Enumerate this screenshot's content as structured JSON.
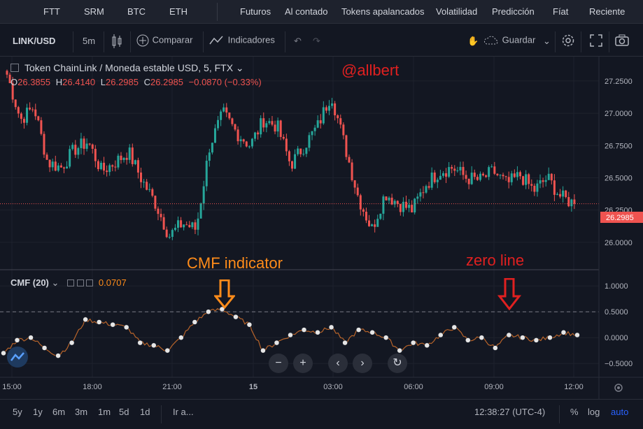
{
  "topnav": {
    "items": [
      "FTT",
      "SRM",
      "BTC",
      "ETH",
      "Futuros",
      "Al contado",
      "Tokens apalancados",
      "Volatilidad",
      "Predicción",
      "Fíat",
      "Reciente"
    ]
  },
  "toolbar": {
    "symbol": "LINK/USD",
    "interval": "5m",
    "compare": "Comparar",
    "indicators": "Indicadores",
    "save": "Guardar"
  },
  "legend": {
    "title": "Token ChainLink / Moneda estable USD, 5, FTX",
    "o_label": "O",
    "o_value": "26.3855",
    "h_label": "H",
    "h_value": "26.4140",
    "l_label": "L",
    "l_value": "26.2985",
    "c_label": "C",
    "c_value": "26.2985",
    "change": "−0.0870 (−0.33%)"
  },
  "watermark": "@allbert",
  "cmf": {
    "label": "CMF (20)",
    "value": "0.0707"
  },
  "annotations": {
    "cmf_indicator": "CMF indicator",
    "zero_line": "zero line"
  },
  "price_tag": "26.2985",
  "bottombar": {
    "ranges": [
      "5y",
      "1y",
      "6m",
      "3m",
      "1m",
      "5d",
      "1d"
    ],
    "goto": "Ir a...",
    "time": "12:38:27 (UTC-4)",
    "percent": "%",
    "log": "log",
    "auto": "auto"
  },
  "colors": {
    "up": "#26a69a",
    "down": "#ef5350",
    "cmf_line": "#b8642a",
    "annotation_orange": "#ff8c1a",
    "annotation_red": "#e02020",
    "accent": "#2962ff"
  },
  "chart_data": [
    {
      "type": "candlestick",
      "title": "Token ChainLink / Moneda estable USD, 5, FTX",
      "x_ticks": [
        "15:00",
        "18:00",
        "21:00",
        "15",
        "03:00",
        "06:00",
        "09:00",
        "12:00"
      ],
      "y_ticks": [
        26.0,
        26.25,
        26.5,
        26.75,
        27.0,
        27.25,
        27.5
      ],
      "ylim": [
        25.88,
        27.52
      ],
      "last_price": 26.2985,
      "close_path": {
        "x": [
          "15:00",
          "15:30",
          "16:00",
          "16:30",
          "17:00",
          "17:30",
          "18:00",
          "18:30",
          "19:00",
          "19:30",
          "20:00",
          "20:30",
          "21:00",
          "21:30",
          "22:00",
          "22:30",
          "23:00",
          "23:30",
          "00:00",
          "00:30",
          "01:00",
          "01:30",
          "02:00",
          "02:30",
          "03:00",
          "03:30",
          "04:00",
          "04:30",
          "05:00",
          "05:30",
          "06:00",
          "06:30",
          "07:00",
          "07:30",
          "08:00",
          "08:30",
          "09:00",
          "09:30",
          "10:00",
          "10:30",
          "11:00",
          "11:30",
          "12:00"
        ],
        "values": [
          27.3,
          26.95,
          27.05,
          26.62,
          26.58,
          26.72,
          26.78,
          26.55,
          26.62,
          26.7,
          26.48,
          26.3,
          26.05,
          26.15,
          26.1,
          26.75,
          27.0,
          26.85,
          26.75,
          26.95,
          26.9,
          26.6,
          26.75,
          26.9,
          27.15,
          26.75,
          26.35,
          26.1,
          26.38,
          26.3,
          26.25,
          26.45,
          26.55,
          26.58,
          26.5,
          26.48,
          26.55,
          26.45,
          26.52,
          26.4,
          26.5,
          26.35,
          26.3
        ]
      }
    },
    {
      "type": "line",
      "title": "CMF (20)",
      "y_ticks": [
        -0.5,
        0.0,
        0.5,
        1.0
      ],
      "ylim": [
        -0.7,
        1.3
      ],
      "reference_line": 0.5,
      "x": [
        "15:00",
        "15:30",
        "16:00",
        "16:30",
        "17:00",
        "17:30",
        "18:00",
        "18:30",
        "19:00",
        "19:30",
        "20:00",
        "20:30",
        "21:00",
        "21:30",
        "22:00",
        "22:30",
        "23:00",
        "23:30",
        "00:00",
        "00:30",
        "01:00",
        "01:30",
        "02:00",
        "02:30",
        "03:00",
        "03:30",
        "04:00",
        "04:30",
        "05:00",
        "05:30",
        "06:00",
        "06:30",
        "07:00",
        "07:30",
        "08:00",
        "08:30",
        "09:00",
        "09:30",
        "10:00",
        "10:30",
        "11:00",
        "11:30",
        "12:00"
      ],
      "values": [
        -0.3,
        -0.05,
        0.0,
        -0.2,
        -0.35,
        -0.1,
        0.35,
        0.3,
        0.25,
        0.2,
        -0.1,
        -0.15,
        -0.25,
        0.0,
        0.3,
        0.5,
        0.55,
        0.4,
        0.25,
        -0.25,
        -0.1,
        0.05,
        0.15,
        0.1,
        0.2,
        -0.1,
        0.15,
        0.1,
        0.0,
        -0.25,
        -0.1,
        -0.15,
        0.05,
        0.2,
        -0.05,
        0.0,
        -0.2,
        0.05,
        0.0,
        -0.05,
        0.0,
        0.1,
        0.05
      ]
    }
  ]
}
